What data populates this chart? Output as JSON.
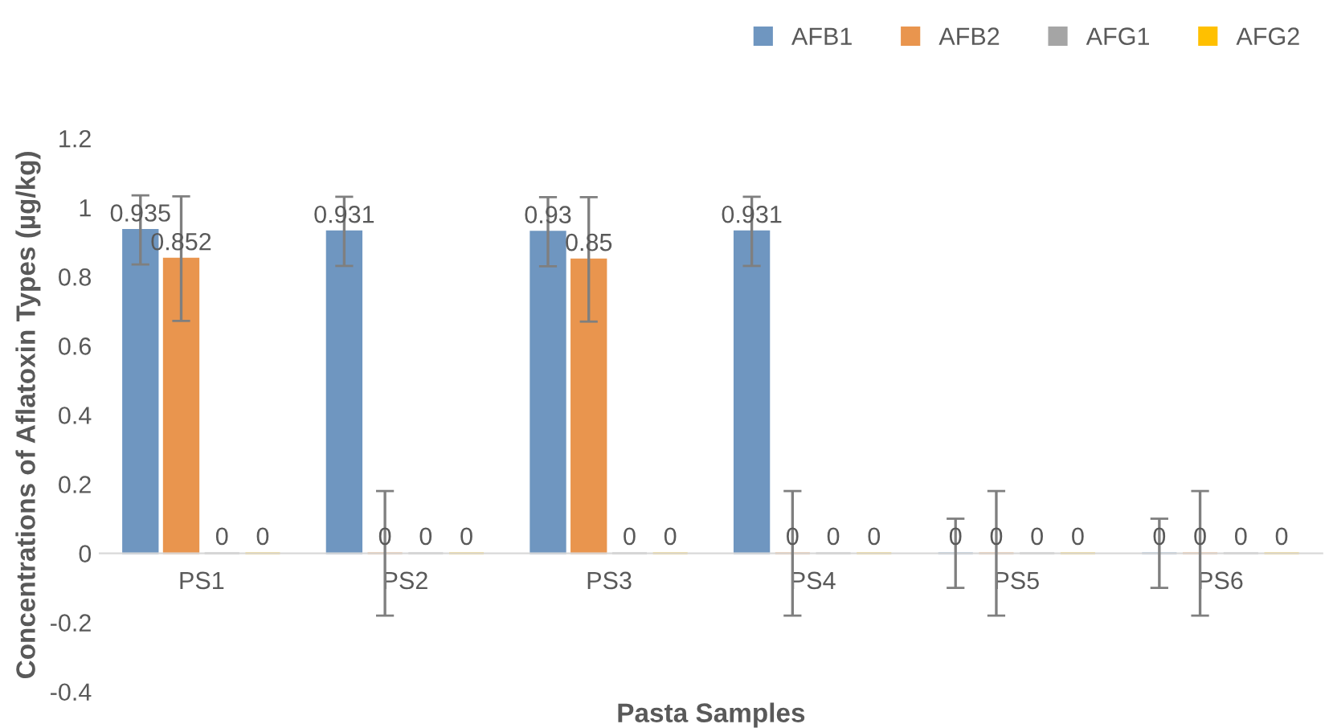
{
  "chart_data": {
    "type": "bar",
    "xlabel": "Pasta Samples",
    "ylabel": "Concentrations of Aflatoxin Types (µg/kg)",
    "categories": [
      "PS1",
      "PS2",
      "PS3",
      "PS4",
      "PS5",
      "PS6"
    ],
    "series": [
      {
        "name": "AFB1",
        "color": "#6f96c0",
        "values": [
          0.935,
          0.931,
          0.93,
          0.931,
          0,
          0
        ],
        "errors": [
          0.1,
          0.1,
          0.1,
          0.1,
          0.1,
          0.1
        ]
      },
      {
        "name": "AFB2",
        "color": "#e9954e",
        "values": [
          0.852,
          0,
          0.85,
          0,
          0,
          0
        ],
        "errors": [
          0.18,
          0.18,
          0.18,
          0.18,
          0.18,
          0.18
        ]
      },
      {
        "name": "AFG1",
        "color": "#a5a5a5",
        "values": [
          0,
          0,
          0,
          0,
          0,
          0
        ]
      },
      {
        "name": "AFG2",
        "color": "#ffc000",
        "values": [
          0,
          0,
          0,
          0,
          0,
          0
        ]
      }
    ],
    "ylim": [
      -0.4,
      1.2
    ],
    "yticks": [
      -0.4,
      -0.2,
      0,
      0.2,
      0.4,
      0.6,
      0.8,
      1,
      1.2
    ],
    "data_labels": true,
    "legend": "top right",
    "grid": false
  }
}
